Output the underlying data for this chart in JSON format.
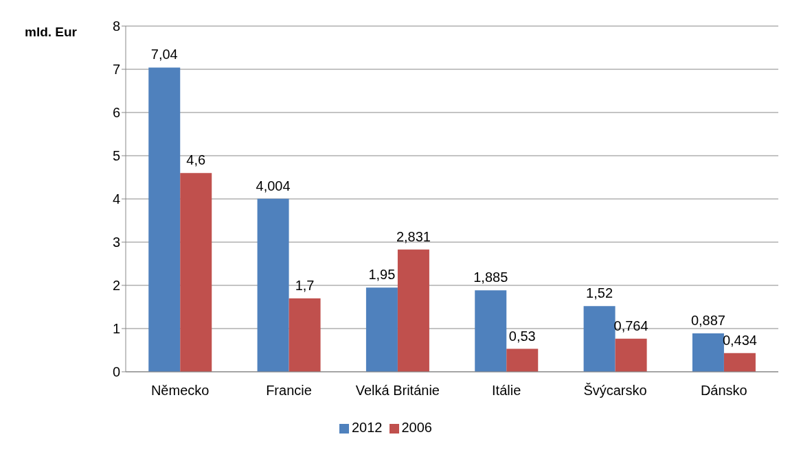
{
  "chart_data": {
    "type": "bar",
    "ylabel": "mld. Eur",
    "categories": [
      "Německo",
      "Francie",
      "Velká Británie",
      "Itálie",
      "Švýcarsko",
      "Dánsko"
    ],
    "series": [
      {
        "name": "2012",
        "color": "#4f81bd",
        "values": [
          7.04,
          4.004,
          1.95,
          1.885,
          1.52,
          0.887
        ],
        "value_labels": [
          "7,04",
          "4,004",
          "1,95",
          "1,885",
          "1,52",
          "0,887"
        ]
      },
      {
        "name": "2006",
        "color": "#c0504d",
        "values": [
          4.6,
          1.7,
          2.831,
          0.53,
          0.764,
          0.434
        ],
        "value_labels": [
          "4,6",
          "1,7",
          "2,831",
          "0,53",
          "0,764",
          "0,434"
        ]
      }
    ],
    "ylim": [
      0,
      8
    ],
    "yticks": [
      0,
      1,
      2,
      3,
      4,
      5,
      6,
      7,
      8
    ],
    "grid": "y",
    "legend": "bottom"
  }
}
